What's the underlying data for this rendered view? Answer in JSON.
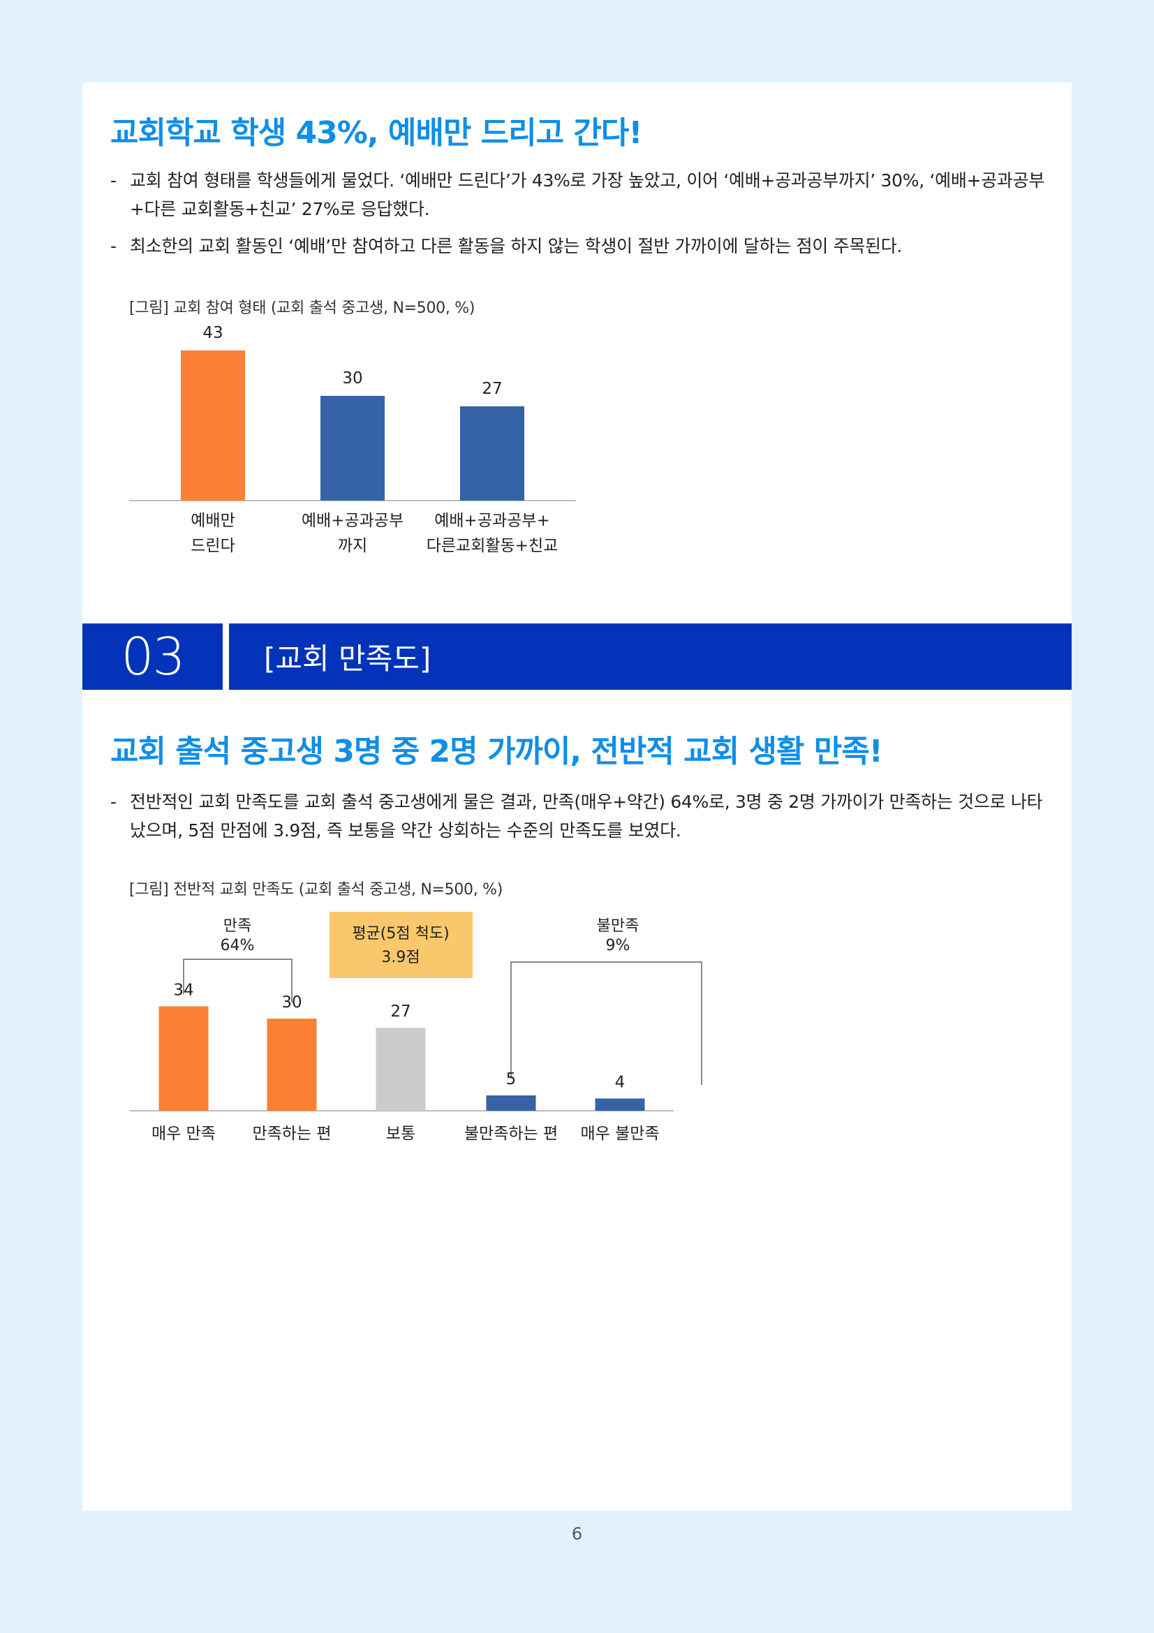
{
  "section1": {
    "heading": "교회학교 학생 43%, 예배만 드리고 간다!",
    "bullets": [
      "교회 참여 형태를 학생들에게 물었다. ‘예배만 드린다’가 43%로 가장 높았고, 이어 ‘예배+공과공부까지’ 30%, ‘예배+공과공부+다른 교회활동+친교’ 27%로 응답했다.",
      "최소한의 교회 활동인 ‘예배’만 참여하고 다른 활동을 하지 않는 학생이 절반 가까이에 달하는 점이 주목된다."
    ],
    "figure_caption": "[그림] 교회 참여 형태 (교회 출석 중고생, N=500, %)"
  },
  "section_bar": {
    "number": "03",
    "title": "[교회 만족도]"
  },
  "section2": {
    "heading": "교회 출석 중고생 3명 중 2명 가까이, 전반적 교회 생활 만족!",
    "bullets": [
      "전반적인 교회 만족도를 교회 출석 중고생에게 물은 결과, 만족(매우+약간) 64%로, 3명 중 2명 가까이가 만족하는 것으로 나타났으며, 5점 만점에 3.9점, 즉 보통을 약간 상회하는 수준의 만족도를 보였다."
    ],
    "figure_caption": "[그림] 전반적 교회 만족도 (교회 출석 중고생, N=500, %)"
  },
  "page_number": "6",
  "chart_data": [
    {
      "type": "bar",
      "categories": [
        [
          "예배만",
          "드린다"
        ],
        [
          "예배+공과공부",
          "까지"
        ],
        [
          "예배+공과공부+",
          "다른교회활동+친교"
        ]
      ],
      "values": [
        43,
        30,
        27
      ],
      "colors": [
        "#fd7f34",
        "#3563a5",
        "#3563a5"
      ],
      "ylim": [
        0,
        50
      ]
    },
    {
      "type": "bar",
      "categories": [
        "매우 만족",
        "만족하는 편",
        "보통",
        "불만족하는 편",
        "매우 불만족"
      ],
      "values": [
        34,
        30,
        27,
        5,
        4
      ],
      "colors": [
        "#fd7f34",
        "#fd7f34",
        "#cbcbc9",
        "#3563a5",
        "#3563a5"
      ],
      "ylim": [
        0,
        40
      ],
      "annotations": {
        "satisfied": {
          "label": "만족",
          "value": "64%"
        },
        "average_box": {
          "line1": "평균(5점 척도)",
          "line2": "3.9점",
          "color": "#f9c76c"
        },
        "dissatisfied": {
          "label": "불만족",
          "value": "9%"
        }
      }
    }
  ]
}
